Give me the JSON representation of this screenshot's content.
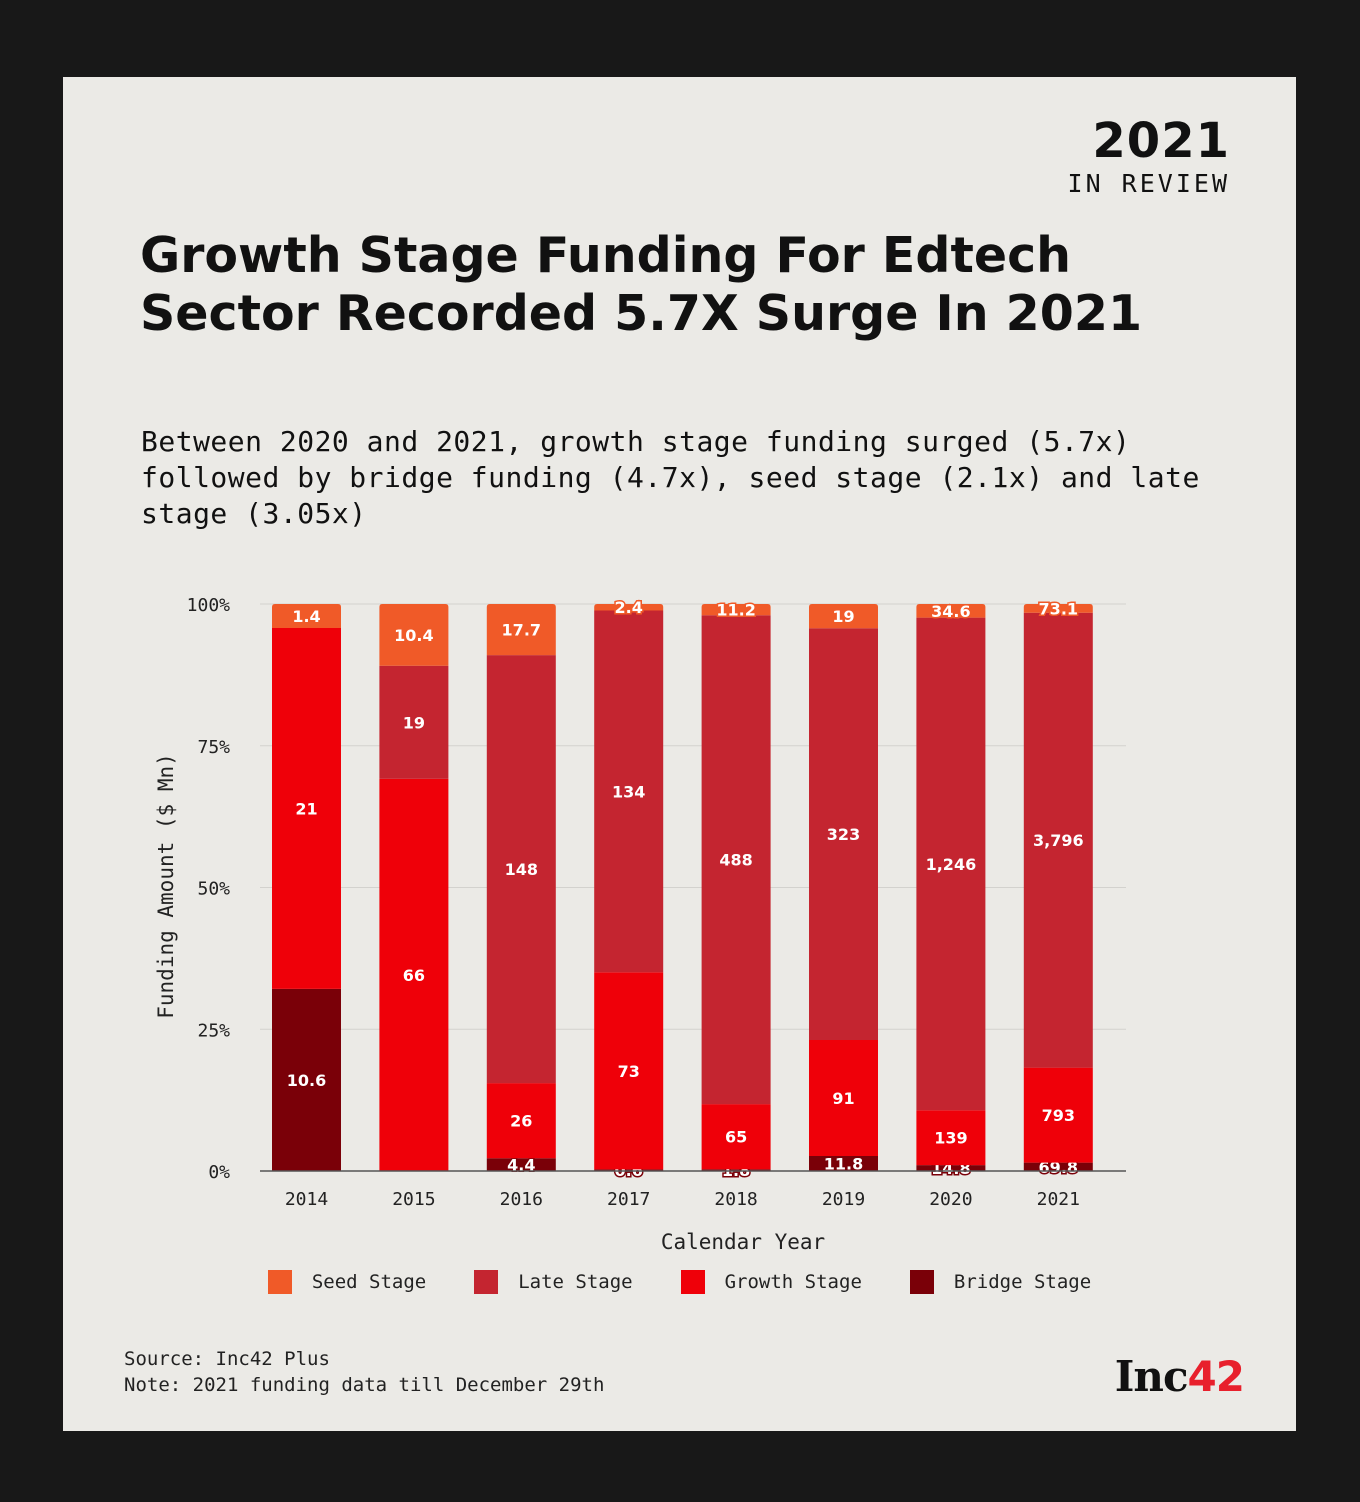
{
  "badge": {
    "year": "2021",
    "subtitle": "IN REVIEW"
  },
  "title": "Growth Stage Funding For Edtech Sector Recorded 5.7X Surge In 2021",
  "subtitle": "Between 2020 and 2021, growth stage funding surged (5.7x) followed by bridge funding (4.7x), seed stage (2.1x) and late stage (3.05x)",
  "colors": {
    "seed": "#f05a28",
    "late": "#c42530",
    "growth": "#ef0009",
    "bridge": "#7a0008",
    "background": "#ebeae6",
    "frame": "#181818"
  },
  "chart_data": {
    "type": "bar",
    "stacked": true,
    "normalized": true,
    "categories": [
      "2014",
      "2015",
      "2016",
      "2017",
      "2018",
      "2019",
      "2020",
      "2021"
    ],
    "series": [
      {
        "key": "bridge",
        "name": "Bridge Stage",
        "values": [
          10.6,
          0,
          4.4,
          0.6,
          1.8,
          11.8,
          14.8,
          69.8
        ],
        "labels": [
          "10.6",
          "",
          "4.4",
          "0.6",
          "1.8",
          "11.8",
          "14.8",
          "69.8"
        ]
      },
      {
        "key": "growth",
        "name": "Growth Stage",
        "values": [
          21,
          66,
          26,
          73,
          65,
          91,
          139,
          793
        ],
        "labels": [
          "21",
          "66",
          "26",
          "73",
          "65",
          "91",
          "139",
          "793"
        ]
      },
      {
        "key": "late",
        "name": "Late Stage",
        "values": [
          0,
          19,
          148,
          134,
          488,
          323,
          1246,
          3796
        ],
        "labels": [
          "",
          "19",
          "148",
          "134",
          "488",
          "323",
          "1,246",
          "3,796"
        ]
      },
      {
        "key": "seed",
        "name": "Seed Stage",
        "values": [
          1.4,
          10.4,
          17.7,
          2.4,
          11.2,
          19,
          34.6,
          73.1
        ],
        "labels": [
          "1.4",
          "10.4",
          "17.7",
          "2.4",
          "11.2",
          "19",
          "34.6",
          "73.1"
        ]
      }
    ],
    "yticks": [
      "0%",
      "25%",
      "50%",
      "75%",
      "100%"
    ],
    "ylim": [
      0,
      100
    ],
    "xlabel": "Calendar Year",
    "ylabel": "Funding Amount ($ Mn)",
    "legend_order": [
      "seed",
      "late",
      "growth",
      "bridge"
    ],
    "legend_position": "bottom-center",
    "grid": true
  },
  "footer": {
    "source": "Source: Inc42 Plus",
    "note": "Note: 2021 funding data till December 29th"
  },
  "logo": {
    "text": "Inc",
    "number": "42"
  }
}
